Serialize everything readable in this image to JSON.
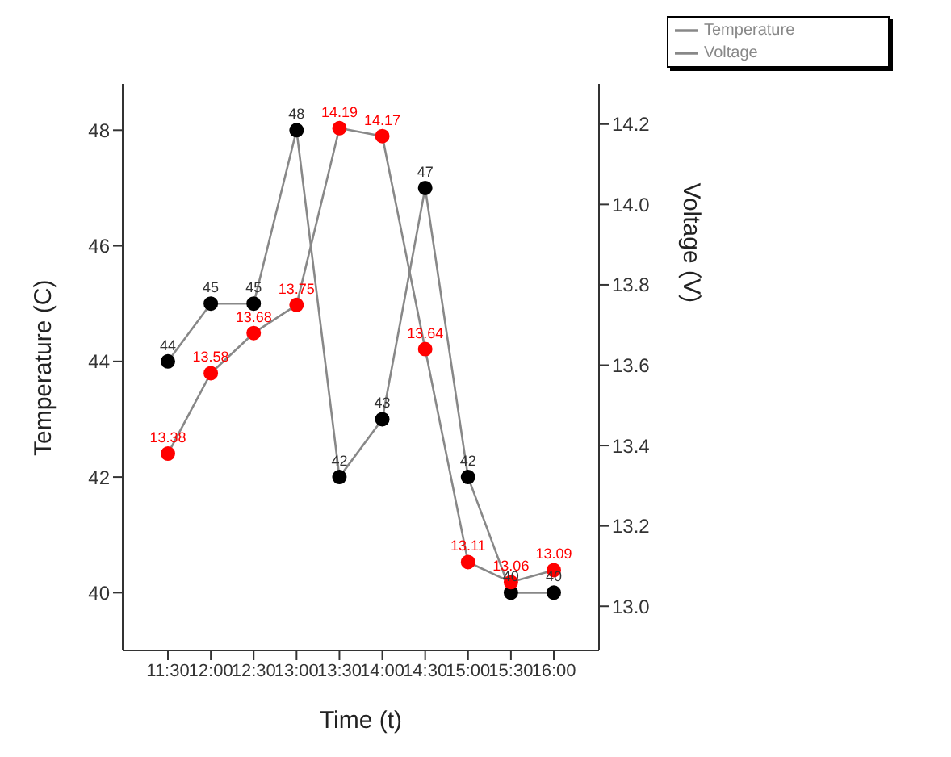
{
  "chart_data": {
    "type": "line",
    "xlabel": "Time (t)",
    "ylabel": "Temperature (C)",
    "y2label": "Voltage (V)",
    "categories": [
      "11:30",
      "12:00",
      "12:30",
      "13:00",
      "13:30",
      "14:00",
      "14:30",
      "15:00",
      "15:30",
      "16:00"
    ],
    "series": [
      {
        "name": "Temperature",
        "color": "#000000",
        "values": [
          44,
          45,
          45,
          48,
          42,
          43,
          47,
          42,
          40,
          40
        ]
      },
      {
        "name": "Voltage",
        "color": "#ff0000",
        "axis": "y2",
        "values": [
          13.38,
          13.58,
          13.68,
          13.75,
          14.19,
          14.17,
          13.64,
          13.11,
          13.06,
          13.09
        ]
      }
    ],
    "ylim": [
      39,
      48.8
    ],
    "yticks": [
      40,
      42,
      44,
      46,
      48
    ],
    "y2lim": [
      12.89,
      14.3
    ],
    "y2ticks": [
      {
        "value": 13,
        "label": "13.0"
      },
      {
        "value": 13.2,
        "label": "13.2"
      },
      {
        "value": 13.4,
        "label": "13.4"
      },
      {
        "value": 13.6,
        "label": "13.6"
      },
      {
        "value": 13.8,
        "label": "13.8"
      },
      {
        "value": 14,
        "label": "14.0"
      },
      {
        "value": 14.2,
        "label": "14.2"
      }
    ],
    "data_labels": true,
    "marker": "circle",
    "line_style": "solid",
    "legend": "top right"
  }
}
